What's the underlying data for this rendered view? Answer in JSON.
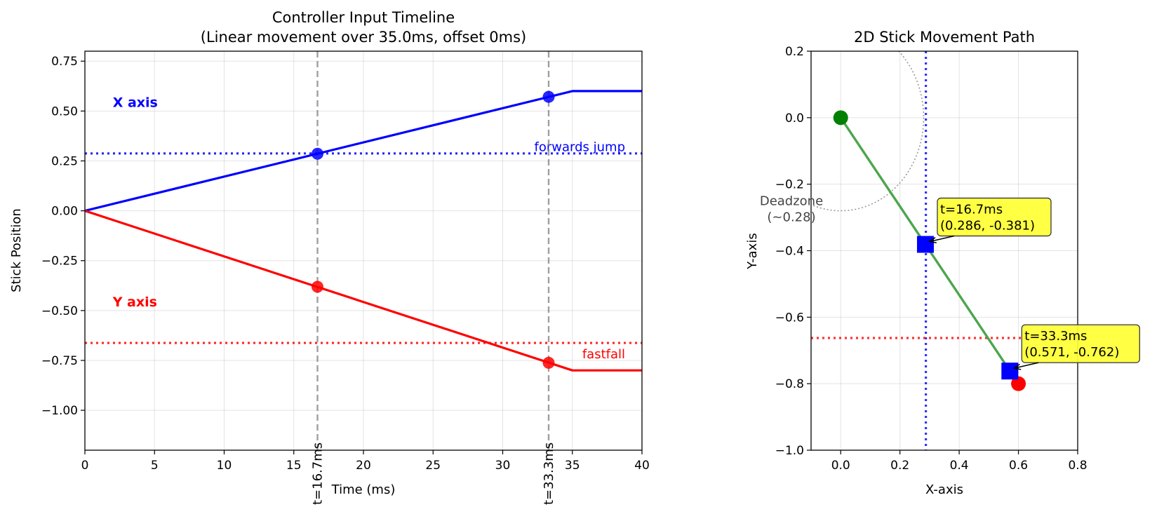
{
  "chart_data": [
    {
      "type": "line",
      "title": "Controller Input Timeline",
      "subtitle": "(Linear movement over 35.0ms, offset 0ms)",
      "xlabel": "Time (ms)",
      "ylabel": "Stick Position",
      "xlim": [
        0,
        40
      ],
      "ylim": [
        -1.2,
        0.8
      ],
      "xticks": [
        0,
        5,
        10,
        15,
        20,
        25,
        30,
        35,
        40
      ],
      "xtick_labels": [
        "0",
        "5",
        "10",
        "15",
        "20",
        "25",
        "30",
        "35",
        "40"
      ],
      "yticks": [
        0.75,
        0.5,
        0.25,
        0.0,
        -0.25,
        -0.5,
        -0.75,
        -1.0
      ],
      "ytick_labels": [
        "0.75",
        "0.50",
        "0.25",
        "0.00",
        "−0.25",
        "−0.50",
        "−0.75",
        "−1.00"
      ],
      "grid": true,
      "series": [
        {
          "name": "X axis",
          "color": "#0000ff",
          "label_at": [
            2,
            0.52
          ],
          "x": [
            0,
            35,
            40
          ],
          "y": [
            0,
            0.6,
            0.6
          ]
        },
        {
          "name": "Y axis",
          "color": "#ff0000",
          "label_at": [
            2,
            -0.48
          ],
          "x": [
            0,
            35,
            40
          ],
          "y": [
            0,
            -0.8,
            -0.8
          ]
        }
      ],
      "markers": [
        {
          "x": 16.7,
          "y": 0.286,
          "color": "#0000ff"
        },
        {
          "x": 33.3,
          "y": 0.571,
          "color": "#0000ff"
        },
        {
          "x": 16.7,
          "y": -0.381,
          "color": "#ff0000"
        },
        {
          "x": 33.3,
          "y": -0.762,
          "color": "#ff0000"
        }
      ],
      "threshold_lines": [
        {
          "y": 0.2875,
          "color": "#0000ff",
          "label": "forwards jump",
          "label_at": [
            30,
            0.3
          ]
        },
        {
          "y": -0.6625,
          "color": "#ff0000",
          "label": "fastfall",
          "label_at": [
            30,
            -0.74
          ]
        }
      ],
      "vertical_lines": [
        {
          "x": 16.7,
          "label": "t=16.7ms"
        },
        {
          "x": 33.3,
          "label": "t=33.3ms"
        }
      ]
    },
    {
      "type": "line",
      "title": "2D Stick Movement Path",
      "xlabel": "X-axis",
      "ylabel": "Y-axis",
      "xlim": [
        -0.1,
        0.8
      ],
      "ylim": [
        -1.0,
        0.2
      ],
      "xticks": [
        0.0,
        0.2,
        0.4,
        0.6,
        0.8
      ],
      "xtick_labels": [
        "0.0",
        "0.2",
        "0.4",
        "0.6",
        "0.8"
      ],
      "yticks": [
        0.2,
        0.0,
        -0.2,
        -0.4,
        -0.6,
        -0.8,
        -1.0
      ],
      "ytick_labels": [
        "0.2",
        "0.0",
        "−0.2",
        "−0.4",
        "−0.6",
        "−0.8",
        "−1.0"
      ],
      "grid": true,
      "path": {
        "x": [
          0,
          0.6
        ],
        "y": [
          0,
          -0.8
        ],
        "color": "#4ca64c"
      },
      "start_point": {
        "x": 0,
        "y": 0,
        "color": "#008000"
      },
      "end_point": {
        "x": 0.6,
        "y": -0.8,
        "color": "#ff0000"
      },
      "sample_points": [
        {
          "x": 0.286,
          "y": -0.381,
          "label_line1": "t=16.7ms",
          "label_line2": "(0.286, -0.381)"
        },
        {
          "x": 0.571,
          "y": -0.762,
          "label_line1": "t=33.3ms",
          "label_line2": "(0.571, -0.762)"
        }
      ],
      "deadzone": {
        "radius": 0.28,
        "label_line1": "Deadzone",
        "label_line2": "(~0.28)"
      },
      "threshold_lines": [
        {
          "orientation": "vertical",
          "x": 0.2875,
          "color": "#0000ff"
        },
        {
          "orientation": "horizontal",
          "y": -0.6625,
          "color": "#ff0000"
        }
      ]
    }
  ]
}
